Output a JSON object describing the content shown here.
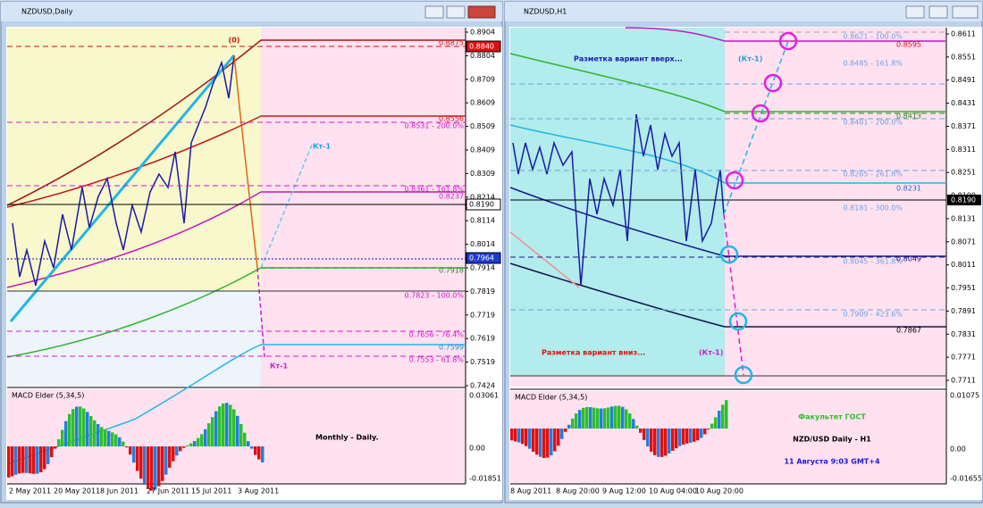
{
  "left": {
    "title": "NZDUSD,Daily",
    "price_ticks": [
      "0.8904",
      "0.8804",
      "0.8709",
      "0.8609",
      "0.8509",
      "0.8409",
      "0.8309",
      "0.8214",
      "0.8114",
      "0.8014",
      "0.7914",
      "0.7819",
      "0.7719",
      "0.7619",
      "0.7519",
      "0.7424"
    ],
    "price_marks": [
      "0.8840",
      "0.8190",
      "0.7964"
    ],
    "levels": [
      "0.8875",
      "0.8556",
      "0.8531 - 200.0%",
      "0.8361 - 161.8%",
      "0.8237",
      "0.7918",
      "0.7823 - 100.0%",
      "0.7656 - 76.4%",
      "0.7599",
      "0.7553 - 61.8%"
    ],
    "annotations": [
      "(0)",
      "Кт-1",
      "Кт-1",
      "Monthly - Daily."
    ],
    "macd": {
      "title": "MACD Elder (5,34,5)",
      "ticks": [
        "0.03061",
        "0.00",
        "-0.01851"
      ]
    },
    "dates": [
      "2 May 2011",
      "20 May 2011",
      "8 Jun 2011",
      "27 Jun 2011",
      "15 Jul 2011",
      "3 Aug 2011"
    ]
  },
  "right": {
    "title": "NZDUSD,H1",
    "price_ticks": [
      "0.8611",
      "0.8551",
      "0.8491",
      "0.8431",
      "0.8371",
      "0.8311",
      "0.8251",
      "0.8190",
      "0.8131",
      "0.8071",
      "0.8011",
      "0.7951",
      "0.7891",
      "0.7831",
      "0.7771",
      "0.7711"
    ],
    "levels": [
      "0.8621 - 100.0%",
      "0.8595",
      "0.8485 - 161.8%",
      "0.8401 - 200.0%",
      "0.8413",
      "0.8265 - 261.8%",
      "0.8231",
      "0.8181 - 300.0%",
      "0.8045 - 361.8%",
      "0.8049",
      "0.7909 - 423.6%",
      "0.7867"
    ],
    "annotations": [
      "Разметка вариант вверх...",
      "(Кт-1)",
      "Разметка вариант вниз...",
      "(Кт-1)"
    ],
    "macd": {
      "title": "MACD Elder (5,34,5)",
      "ticks": [
        "0.01075",
        "0.00",
        "-0.01655"
      ]
    },
    "captions": [
      "Факультет ГОСТ",
      "NZD/USD Daily - H1",
      "11 Августа 9:03 GMT+4"
    ],
    "dates": [
      "8 Aug 2011",
      "8 Aug 20:00",
      "9 Aug 12:00",
      "10 Aug 04:00",
      "10 Aug 20:00"
    ]
  }
}
